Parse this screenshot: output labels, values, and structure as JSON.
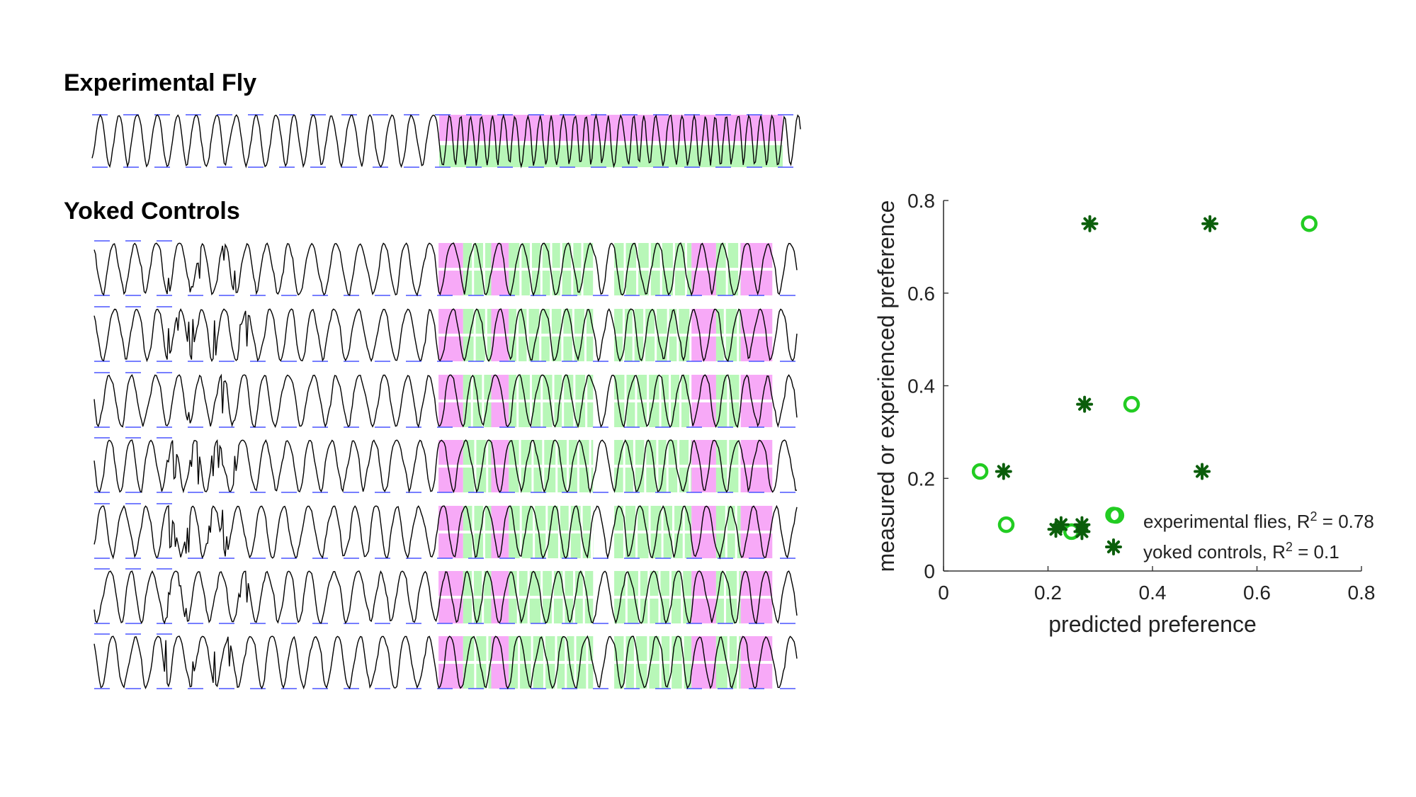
{
  "panel_left": {
    "experimental_heading": "Experimental Fly",
    "yoked_heading": "Yoked Controls",
    "colors": {
      "trace": "#000000",
      "guide": "#4a55ff",
      "pink": "#f7a9f7",
      "green": "#b8f7b8"
    },
    "experimental_segments": [
      {
        "start": 0.49,
        "end": 0.975,
        "top": "pink",
        "bottom": "green"
      }
    ],
    "yoked_segments": [
      [
        {
          "s": 0.49,
          "e": 0.525,
          "c": "pink"
        },
        {
          "s": 0.525,
          "e": 0.565,
          "c": "green"
        },
        {
          "s": 0.565,
          "e": 0.59,
          "c": "pink"
        },
        {
          "s": 0.59,
          "e": 0.71,
          "c": "green"
        },
        {
          "s": 0.74,
          "e": 0.85,
          "c": "green"
        },
        {
          "s": 0.85,
          "e": 0.885,
          "c": "pink"
        },
        {
          "s": 0.885,
          "e": 0.92,
          "c": "green"
        },
        {
          "s": 0.92,
          "e": 0.965,
          "c": "pink"
        }
      ],
      [
        {
          "s": 0.49,
          "e": 0.525,
          "c": "pink"
        },
        {
          "s": 0.525,
          "e": 0.565,
          "c": "green"
        },
        {
          "s": 0.565,
          "e": 0.59,
          "c": "pink"
        },
        {
          "s": 0.59,
          "e": 0.71,
          "c": "green"
        },
        {
          "s": 0.74,
          "e": 0.85,
          "c": "green"
        },
        {
          "s": 0.85,
          "e": 0.885,
          "c": "pink"
        },
        {
          "s": 0.885,
          "e": 0.92,
          "c": "green"
        },
        {
          "s": 0.92,
          "e": 0.965,
          "c": "pink"
        }
      ],
      [
        {
          "s": 0.49,
          "e": 0.525,
          "c": "pink"
        },
        {
          "s": 0.525,
          "e": 0.565,
          "c": "green"
        },
        {
          "s": 0.565,
          "e": 0.59,
          "c": "pink"
        },
        {
          "s": 0.59,
          "e": 0.71,
          "c": "green"
        },
        {
          "s": 0.74,
          "e": 0.85,
          "c": "green"
        },
        {
          "s": 0.85,
          "e": 0.885,
          "c": "pink"
        },
        {
          "s": 0.885,
          "e": 0.92,
          "c": "green"
        },
        {
          "s": 0.92,
          "e": 0.965,
          "c": "pink"
        }
      ],
      [
        {
          "s": 0.49,
          "e": 0.525,
          "c": "pink"
        },
        {
          "s": 0.525,
          "e": 0.565,
          "c": "green"
        },
        {
          "s": 0.565,
          "e": 0.59,
          "c": "pink"
        },
        {
          "s": 0.59,
          "e": 0.71,
          "c": "green"
        },
        {
          "s": 0.74,
          "e": 0.85,
          "c": "green"
        },
        {
          "s": 0.85,
          "e": 0.885,
          "c": "pink"
        },
        {
          "s": 0.885,
          "e": 0.92,
          "c": "green"
        },
        {
          "s": 0.92,
          "e": 0.965,
          "c": "pink"
        }
      ],
      [
        {
          "s": 0.49,
          "e": 0.525,
          "c": "pink"
        },
        {
          "s": 0.525,
          "e": 0.565,
          "c": "green"
        },
        {
          "s": 0.565,
          "e": 0.59,
          "c": "pink"
        },
        {
          "s": 0.59,
          "e": 0.71,
          "c": "green"
        },
        {
          "s": 0.74,
          "e": 0.85,
          "c": "green"
        },
        {
          "s": 0.85,
          "e": 0.885,
          "c": "pink"
        },
        {
          "s": 0.885,
          "e": 0.92,
          "c": "green"
        },
        {
          "s": 0.92,
          "e": 0.965,
          "c": "pink"
        }
      ],
      [
        {
          "s": 0.49,
          "e": 0.525,
          "c": "pink"
        },
        {
          "s": 0.525,
          "e": 0.565,
          "c": "green"
        },
        {
          "s": 0.565,
          "e": 0.59,
          "c": "pink"
        },
        {
          "s": 0.59,
          "e": 0.71,
          "c": "green"
        },
        {
          "s": 0.74,
          "e": 0.85,
          "c": "green"
        },
        {
          "s": 0.85,
          "e": 0.885,
          "c": "pink"
        },
        {
          "s": 0.885,
          "e": 0.92,
          "c": "green"
        },
        {
          "s": 0.92,
          "e": 0.965,
          "c": "pink"
        }
      ],
      [
        {
          "s": 0.49,
          "e": 0.525,
          "c": "pink"
        },
        {
          "s": 0.525,
          "e": 0.565,
          "c": "green"
        },
        {
          "s": 0.565,
          "e": 0.59,
          "c": "pink"
        },
        {
          "s": 0.59,
          "e": 0.71,
          "c": "green"
        },
        {
          "s": 0.74,
          "e": 0.85,
          "c": "green"
        },
        {
          "s": 0.85,
          "e": 0.885,
          "c": "pink"
        },
        {
          "s": 0.885,
          "e": 0.92,
          "c": "green"
        },
        {
          "s": 0.92,
          "e": 0.965,
          "c": "pink"
        }
      ]
    ]
  },
  "chart_data": {
    "type": "scatter",
    "title": "",
    "xlabel": "predicted preference",
    "ylabel": "measured or experienced preference",
    "xlim": [
      0,
      0.8
    ],
    "ylim": [
      0,
      0.8
    ],
    "xticks": [
      "0",
      "0.2",
      "0.4",
      "0.6",
      "0.8"
    ],
    "yticks": [
      "0",
      "0.2",
      "0.4",
      "0.6",
      "0.8"
    ],
    "grid": false,
    "legend_position": "bottom-right",
    "series": [
      {
        "legend_prefix": "experimental flies, R",
        "legend_sup": "2",
        "legend_suffix": " = 0.78",
        "marker": "circle",
        "color": "#22cc22",
        "points": [
          [
            0.07,
            0.215
          ],
          [
            0.12,
            0.1
          ],
          [
            0.245,
            0.085
          ],
          [
            0.33,
            0.12
          ],
          [
            0.36,
            0.36
          ],
          [
            0.7,
            0.75
          ]
        ]
      },
      {
        "legend_prefix": "yoked controls, R",
        "legend_sup": "2",
        "legend_suffix": " = 0.1",
        "marker": "asterisk",
        "color": "#0b5e0b",
        "points": [
          [
            0.28,
            0.75
          ],
          [
            0.51,
            0.75
          ],
          [
            0.27,
            0.36
          ],
          [
            0.115,
            0.215
          ],
          [
            0.495,
            0.215
          ],
          [
            0.215,
            0.09
          ],
          [
            0.225,
            0.1
          ],
          [
            0.265,
            0.085
          ],
          [
            0.265,
            0.1
          ]
        ]
      }
    ]
  }
}
